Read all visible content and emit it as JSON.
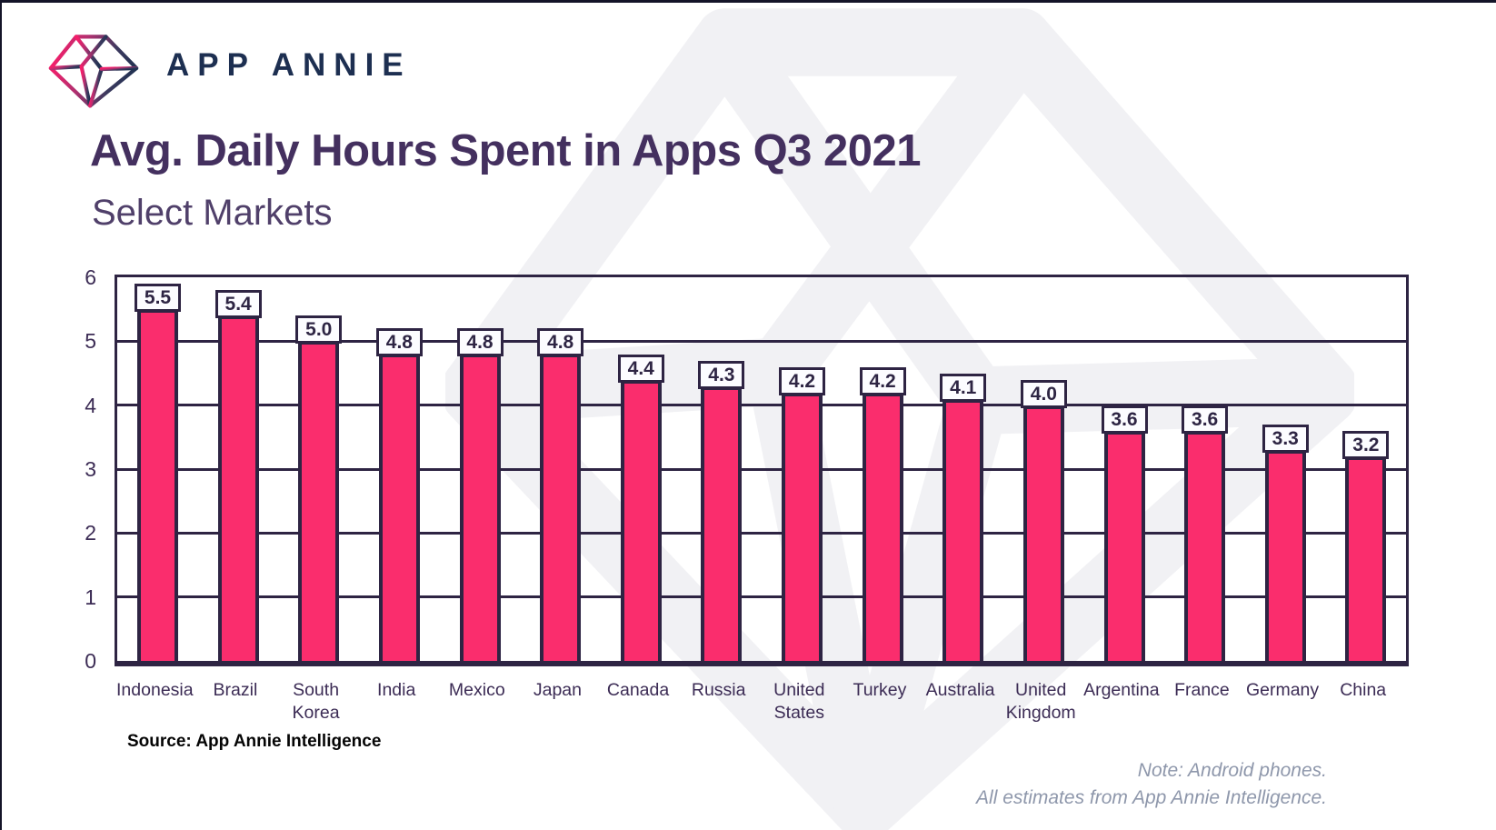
{
  "header": {
    "brand": "APP ANNIE",
    "title": "Avg. Daily Hours Spent in Apps Q3 2021",
    "subtitle": "Select Markets"
  },
  "chart_data": {
    "type": "bar",
    "title": "Avg. Daily Hours Spent in Apps Q3 2021",
    "subtitle": "Select Markets",
    "categories": [
      "Indonesia",
      "Brazil",
      "South Korea",
      "India",
      "Mexico",
      "Japan",
      "Canada",
      "Russia",
      "United States",
      "Turkey",
      "Australia",
      "United Kingdom",
      "Argentina",
      "France",
      "Germany",
      "China"
    ],
    "values": [
      5.5,
      5.4,
      5.0,
      4.8,
      4.8,
      4.8,
      4.4,
      4.3,
      4.2,
      4.2,
      4.1,
      4.0,
      3.6,
      3.6,
      3.3,
      3.2
    ],
    "value_labels": [
      "5.5",
      "5.4",
      "5.0",
      "4.8",
      "4.8",
      "4.8",
      "4.4",
      "4.3",
      "4.2",
      "4.2",
      "4.1",
      "4.0",
      "3.6",
      "3.6",
      "3.3",
      "3.2"
    ],
    "xlabel": "",
    "ylabel": "",
    "ylim": [
      0,
      6
    ],
    "yticks": [
      0,
      1,
      2,
      3,
      4,
      5,
      6
    ],
    "grid": true,
    "legend": "none",
    "bar_color": "#FA2D6D",
    "grid_color": "#2E2443",
    "label_box_bg": "#FCFCFF"
  },
  "footer": {
    "source": "Source: App Annie Intelligence",
    "note_line1": "Note: Android phones.",
    "note_line2": "All estimates from App Annie Intelligence."
  },
  "colors": {
    "accent_pink": "#FA2D6D",
    "dark_purple": "#2E2443",
    "title_purple": "#44305F",
    "brand_navy": "#1D2F51",
    "note_gray": "#8E97AB",
    "watermark_gray": "#F1F1F4"
  }
}
